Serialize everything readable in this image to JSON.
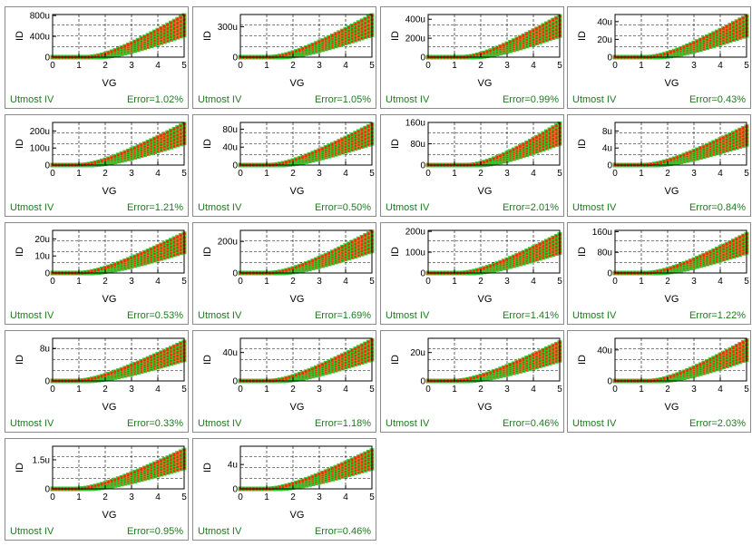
{
  "colors": {
    "points": "#ff2a00",
    "fit": "#33cc33",
    "text": "#1f7a1f",
    "frame": "#8a8a8a"
  },
  "chart_data": [
    {
      "type": "scatter",
      "xlabel": "VG",
      "ylabel": "ID",
      "xlim": [
        0,
        5
      ],
      "ylim": [
        0,
        0.00082
      ],
      "yticks": [
        "0",
        "400u",
        "800u"
      ],
      "ytick_values": [
        0,
        0.0004,
        0.0008
      ],
      "xticks": [
        "0",
        "1",
        "2",
        "3",
        "4",
        "5"
      ],
      "vth": 1.3,
      "ymax_at5": 0.0008,
      "legend": "Utmost IV",
      "error": "Error=1.02%"
    },
    {
      "type": "scatter",
      "xlabel": "VG",
      "ylabel": "ID",
      "xlim": [
        0,
        5
      ],
      "ylim": [
        0,
        0.00042
      ],
      "yticks": [
        "0",
        "300u"
      ],
      "ytick_values": [
        0,
        0.0003
      ],
      "xticks": [
        "0",
        "1",
        "2",
        "3",
        "4",
        "5"
      ],
      "vth": 1.1,
      "ymax_at5": 0.00041,
      "legend": "Utmost IV",
      "error": "Error=1.05%"
    },
    {
      "type": "scatter",
      "xlabel": "VG",
      "ylabel": "ID",
      "xlim": [
        0,
        5
      ],
      "ylim": [
        0,
        0.00045
      ],
      "yticks": [
        "0",
        "200u",
        "400u"
      ],
      "ytick_values": [
        0,
        0.0002,
        0.0004
      ],
      "xticks": [
        "0",
        "1",
        "2",
        "3",
        "4",
        "5"
      ],
      "vth": 1.3,
      "ymax_at5": 0.00043,
      "legend": "Utmost IV",
      "error": "Error=0.99%"
    },
    {
      "type": "scatter",
      "xlabel": "VG",
      "ylabel": "ID",
      "xlim": [
        0,
        5
      ],
      "ylim": [
        0,
        4.8e-05
      ],
      "yticks": [
        "0",
        "20u",
        "40u"
      ],
      "ytick_values": [
        0,
        2e-05,
        4e-05
      ],
      "xticks": [
        "0",
        "1",
        "2",
        "3",
        "4",
        "5"
      ],
      "vth": 1.2,
      "ymax_at5": 4.6e-05,
      "legend": "Utmost IV",
      "error": "Error=0.43%"
    },
    {
      "type": "scatter",
      "xlabel": "VG",
      "ylabel": "ID",
      "xlim": [
        0,
        5
      ],
      "ylim": [
        0,
        0.00025
      ],
      "yticks": [
        "0",
        "100u",
        "200u"
      ],
      "ytick_values": [
        0,
        0.0001,
        0.0002
      ],
      "xticks": [
        "0",
        "1",
        "2",
        "3",
        "4",
        "5"
      ],
      "vth": 1.0,
      "ymax_at5": 0.00024,
      "legend": "Utmost IV",
      "error": "Error=1.21%"
    },
    {
      "type": "scatter",
      "xlabel": "VG",
      "ylabel": "ID",
      "xlim": [
        0,
        5
      ],
      "ylim": [
        0,
        9.5e-05
      ],
      "yticks": [
        "0",
        "40u",
        "80u"
      ],
      "ytick_values": [
        0,
        4e-05,
        8e-05
      ],
      "xticks": [
        "0",
        "1",
        "2",
        "3",
        "4",
        "5"
      ],
      "vth": 1.1,
      "ymax_at5": 9e-05,
      "legend": "Utmost IV",
      "error": "Error=0.50%"
    },
    {
      "type": "scatter",
      "xlabel": "VG",
      "ylabel": "ID",
      "xlim": [
        0,
        5
      ],
      "ylim": [
        0,
        0.00016
      ],
      "yticks": [
        "0",
        "80u",
        "160u"
      ],
      "ytick_values": [
        0,
        8e-05,
        0.00016
      ],
      "xticks": [
        "0",
        "1",
        "2",
        "3",
        "4",
        "5"
      ],
      "vth": 1.5,
      "ymax_at5": 0.000155,
      "legend": "Utmost IV",
      "error": "Error=2.01%"
    },
    {
      "type": "scatter",
      "xlabel": "VG",
      "ylabel": "ID",
      "xlim": [
        0,
        5
      ],
      "ylim": [
        0,
        1e-05
      ],
      "yticks": [
        "0",
        "4u",
        "8u"
      ],
      "ytick_values": [
        0,
        4e-06,
        8e-06
      ],
      "xticks": [
        "0",
        "1",
        "2",
        "3",
        "4",
        "5"
      ],
      "vth": 1.1,
      "ymax_at5": 9e-06,
      "legend": "Utmost IV",
      "error": "Error=0.84%"
    },
    {
      "type": "scatter",
      "xlabel": "VG",
      "ylabel": "ID",
      "xlim": [
        0,
        5
      ],
      "ylim": [
        0,
        2.5e-05
      ],
      "yticks": [
        "0",
        "10u",
        "20u"
      ],
      "ytick_values": [
        0,
        1e-05,
        2e-05
      ],
      "xticks": [
        "0",
        "1",
        "2",
        "3",
        "4",
        "5"
      ],
      "vth": 1.0,
      "ymax_at5": 2.3e-05,
      "legend": "Utmost IV",
      "error": "Error=0.53%"
    },
    {
      "type": "scatter",
      "xlabel": "VG",
      "ylabel": "ID",
      "xlim": [
        0,
        5
      ],
      "ylim": [
        0,
        0.00027
      ],
      "yticks": [
        "0",
        "200u"
      ],
      "ytick_values": [
        0,
        0.0002
      ],
      "xticks": [
        "0",
        "1",
        "2",
        "3",
        "4",
        "5"
      ],
      "vth": 1.1,
      "ymax_at5": 0.00026,
      "legend": "Utmost IV",
      "error": "Error=1.69%"
    },
    {
      "type": "scatter",
      "xlabel": "VG",
      "ylabel": "ID",
      "xlim": [
        0,
        5
      ],
      "ylim": [
        0,
        0.000205
      ],
      "yticks": [
        "0",
        "100u",
        "200u"
      ],
      "ytick_values": [
        0,
        0.0001,
        0.0002
      ],
      "xticks": [
        "0",
        "1",
        "2",
        "3",
        "4",
        "5"
      ],
      "vth": 1.2,
      "ymax_at5": 0.000185,
      "legend": "Utmost IV",
      "error": "Error=1.41%"
    },
    {
      "type": "scatter",
      "xlabel": "VG",
      "ylabel": "ID",
      "xlim": [
        0,
        5
      ],
      "ylim": [
        0,
        0.000165
      ],
      "yticks": [
        "0",
        "80u",
        "160u"
      ],
      "ytick_values": [
        0,
        8e-05,
        0.00016
      ],
      "xticks": [
        "0",
        "1",
        "2",
        "3",
        "4",
        "5"
      ],
      "vth": 1.2,
      "ymax_at5": 0.00015,
      "legend": "Utmost IV",
      "error": "Error=1.22%"
    },
    {
      "type": "scatter",
      "xlabel": "VG",
      "ylabel": "ID",
      "xlim": [
        0,
        5
      ],
      "ylim": [
        0,
        1.05e-05
      ],
      "yticks": [
        "0",
        "8u"
      ],
      "ytick_values": [
        0,
        8e-06
      ],
      "xticks": [
        "0",
        "1",
        "2",
        "3",
        "4",
        "5"
      ],
      "vth": 0.9,
      "ymax_at5": 9.6e-06,
      "legend": "Utmost IV",
      "error": "Error=0.33%"
    },
    {
      "type": "scatter",
      "xlabel": "VG",
      "ylabel": "ID",
      "xlim": [
        0,
        5
      ],
      "ylim": [
        0,
        6e-05
      ],
      "yticks": [
        "0",
        "40u"
      ],
      "ytick_values": [
        0,
        4e-05
      ],
      "xticks": [
        "0",
        "1",
        "2",
        "3",
        "4",
        "5"
      ],
      "vth": 1.1,
      "ymax_at5": 5.7e-05,
      "legend": "Utmost IV",
      "error": "Error=1.18%"
    },
    {
      "type": "scatter",
      "xlabel": "VG",
      "ylabel": "ID",
      "xlim": [
        0,
        5
      ],
      "ylim": [
        0,
        3e-05
      ],
      "yticks": [
        "0",
        "20u"
      ],
      "ytick_values": [
        0,
        2e-05
      ],
      "xticks": [
        "0",
        "1",
        "2",
        "3",
        "4",
        "5"
      ],
      "vth": 1.0,
      "ymax_at5": 2.7e-05,
      "legend": "Utmost IV",
      "error": "Error=0.46%"
    },
    {
      "type": "scatter",
      "xlabel": "VG",
      "ylabel": "ID",
      "xlim": [
        0,
        5
      ],
      "ylim": [
        0,
        5.5e-05
      ],
      "yticks": [
        "0",
        "40u"
      ],
      "ytick_values": [
        0,
        4e-05
      ],
      "xticks": [
        "0",
        "1",
        "2",
        "3",
        "4",
        "5"
      ],
      "vth": 1.3,
      "ymax_at5": 5.2e-05,
      "legend": "Utmost IV",
      "error": "Error=2.03%"
    },
    {
      "type": "scatter",
      "xlabel": "VG",
      "ylabel": "ID",
      "xlim": [
        0,
        5
      ],
      "ylim": [
        0,
        2.2e-06
      ],
      "yticks": [
        "0",
        "1.5u"
      ],
      "ytick_values": [
        0,
        1.5e-06
      ],
      "xticks": [
        "0",
        "1",
        "2",
        "3",
        "4",
        "5"
      ],
      "vth": 0.9,
      "ymax_at5": 2e-06,
      "legend": "Utmost IV",
      "error": "Error=0.95%"
    },
    {
      "type": "scatter",
      "xlabel": "VG",
      "ylabel": "ID",
      "xlim": [
        0,
        5
      ],
      "ylim": [
        0,
        7e-06
      ],
      "yticks": [
        "0",
        "4u"
      ],
      "ytick_values": [
        0,
        4e-06
      ],
      "xticks": [
        "0",
        "1",
        "2",
        "3",
        "4",
        "5"
      ],
      "vth": 1.0,
      "ymax_at5": 6.3e-06,
      "legend": "Utmost IV",
      "error": "Error=0.46%"
    }
  ]
}
